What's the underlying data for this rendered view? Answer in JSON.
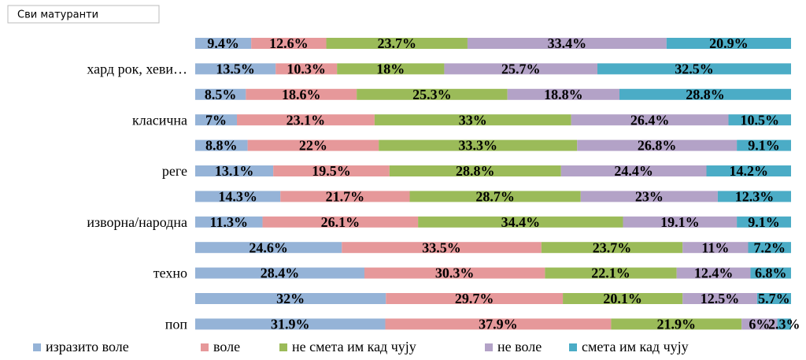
{
  "chart_data": {
    "type": "stacked-bar",
    "orientation": "horizontal",
    "title": "Сви матуранти",
    "categories": [
      null,
      "хард рок, хеви…",
      null,
      "класична",
      null,
      "реге",
      null,
      "изворна/народна",
      null,
      "техно",
      null,
      "поп"
    ],
    "xlim": [
      0,
      100
    ],
    "series": [
      {
        "name": "изразито воле",
        "color": "#95b3d7",
        "values": [
          9.4,
          13.5,
          8.5,
          7,
          8.8,
          13.1,
          14.3,
          11.3,
          24.6,
          28.4,
          32,
          31.9
        ],
        "value_labels": [
          "9.4%",
          "13.5%",
          "8.5%",
          "7%",
          "8.8%",
          "13.1%",
          "14.3%",
          "11.3%",
          "24.6%",
          "28.4%",
          "32%",
          "31.9%"
        ]
      },
      {
        "name": "воле",
        "color": "#e6989a",
        "values": [
          12.6,
          10.3,
          18.6,
          23.1,
          22,
          19.5,
          21.7,
          26.1,
          33.5,
          30.3,
          29.7,
          37.9
        ],
        "value_labels": [
          "12.6%",
          "10.3%",
          "18.6%",
          "23.1%",
          "22%",
          "19.5%",
          "21.7%",
          "26.1%",
          "33.5%",
          "30.3%",
          "29.7%",
          "37.9%"
        ]
      },
      {
        "name": "не смета им кад чују",
        "color": "#9bbb59",
        "values": [
          23.7,
          18,
          25.3,
          33,
          33.3,
          28.8,
          28.7,
          34.4,
          23.7,
          22.1,
          20.1,
          21.9
        ],
        "value_labels": [
          "23.7%",
          "18%",
          "25.3%",
          "33%",
          "33.3%",
          "28.8%",
          "28.7%",
          "34.4%",
          "23.7%",
          "22.1%",
          "20.1%",
          "21.9%"
        ]
      },
      {
        "name": "не воле",
        "color": "#b3a2c7",
        "values": [
          33.4,
          25.7,
          18.8,
          26.4,
          26.8,
          24.4,
          23,
          19.1,
          11,
          12.4,
          12.5,
          6
        ],
        "value_labels": [
          "33.4%",
          "25.7%",
          "18.8%",
          "26.4%",
          "26.8%",
          "24.4%",
          "23%",
          "19.1%",
          "11%",
          "12.4%",
          "12.5%",
          "6%"
        ]
      },
      {
        "name": "смета им кад чују",
        "color": "#4bacc6",
        "values": [
          20.9,
          32.5,
          28.8,
          10.5,
          9.1,
          14.2,
          12.3,
          9.1,
          7.2,
          6.8,
          5.7,
          2.3
        ],
        "value_labels": [
          "20.9%",
          "32.5%",
          "28.8%",
          "10.5%",
          "9.1%",
          "14.2%",
          "12.3%",
          "9.1%",
          "7.2%",
          "6.8%",
          "5.7%",
          "2.3%"
        ]
      }
    ],
    "legend": "bottom"
  }
}
